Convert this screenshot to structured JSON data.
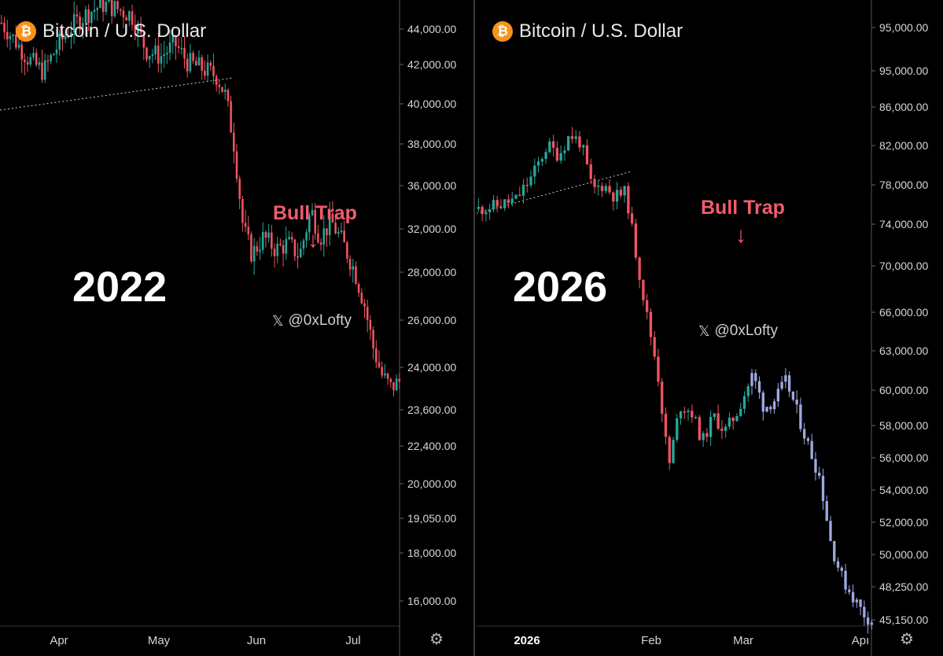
{
  "panels": [
    {
      "id": "left",
      "title": "Bitcoin / U.S. Dollar",
      "coin_symbol": "₿",
      "year_label": "2022",
      "annotation": "Bull Trap",
      "arrow": "↓",
      "watermark": "@0xLofty",
      "x_logo": "𝕏",
      "settings_icon": "⚙"
    },
    {
      "id": "right",
      "title": "Bitcoin / U.S. Dollar",
      "coin_symbol": "₿",
      "year_label": "2026",
      "annotation": "Bull Trap",
      "arrow": "↓",
      "watermark": "@0xLofty",
      "x_logo": "𝕏",
      "settings_icon": "⚙"
    }
  ],
  "colors": {
    "up": "#26a69a",
    "down": "#ef5361",
    "ghost": "#9fa8e0",
    "annotation": "#f25c6b"
  },
  "chart_data": [
    {
      "type": "candlestick",
      "title": "Bitcoin / U.S. Dollar",
      "period_label": "2022",
      "x_tick_labels": [
        "Apr",
        "May",
        "Jun",
        "Jul"
      ],
      "y_tick_labels": [
        "44,000.00",
        "42,000.00",
        "40,000.00",
        "38,000.00",
        "36,000.00",
        "32,000.00",
        "28,000.00",
        "26,000.00",
        "24,000.00",
        "23,600.00",
        "22,400.00",
        "20,000.00",
        "19,050.00",
        "18,000.00",
        "16,000.00"
      ],
      "annotation": "Bull Trap",
      "close_path": [
        {
          "x": "Mar 28",
          "y": 41.6
        },
        {
          "x": "Apr 2",
          "y": 40.5
        },
        {
          "x": "Apr 7",
          "y": 39.2
        },
        {
          "x": "Apr 12",
          "y": 38.4
        },
        {
          "x": "Apr 17",
          "y": 40.1
        },
        {
          "x": "Apr 22",
          "y": 41.4
        },
        {
          "x": "Apr 27",
          "y": 42.2
        },
        {
          "x": "May 2",
          "y": 42.8
        },
        {
          "x": "May 7",
          "y": 42.5
        },
        {
          "x": "May 12",
          "y": 42.1
        },
        {
          "x": "May 17",
          "y": 39.8
        },
        {
          "x": "May 22",
          "y": 39.4
        },
        {
          "x": "May 27",
          "y": 40.2
        },
        {
          "x": "Jun 1",
          "y": 39.0
        },
        {
          "x": "Jun 6",
          "y": 38.6
        },
        {
          "x": "Jun 11",
          "y": 38.1
        },
        {
          "x": "Jun 14",
          "y": 36.8
        },
        {
          "x": "Jun 17",
          "y": 33.5
        },
        {
          "x": "Jun 20",
          "y": 28.2
        },
        {
          "x": "Jun 23",
          "y": 26.5
        },
        {
          "x": "Jun 27",
          "y": 27.6
        },
        {
          "x": "Jul 1",
          "y": 26.8
        },
        {
          "x": "Jul 5",
          "y": 27.2
        },
        {
          "x": "Jul 9",
          "y": 26.4
        },
        {
          "x": "Jul 13",
          "y": 29.4
        },
        {
          "x": "Jul 16",
          "y": 27.6
        },
        {
          "x": "Jul 20",
          "y": 28.6
        },
        {
          "x": "Jul 24",
          "y": 27.2
        },
        {
          "x": "Jul 28",
          "y": 25.4
        },
        {
          "x": "Aug 1",
          "y": 23.2
        },
        {
          "x": "Aug 4",
          "y": 20.4
        },
        {
          "x": "Aug 7",
          "y": 18.6
        },
        {
          "x": "Aug 10",
          "y": 17.8
        },
        {
          "x": "Aug 13",
          "y": 18.2
        }
      ],
      "trendline": {
        "from": {
          "x": "Mar 28",
          "y": 35.9
        },
        "to": {
          "x": "Jun 18",
          "y": 38.0
        }
      }
    },
    {
      "type": "candlestick",
      "title": "Bitcoin / U.S. Dollar",
      "period_label": "2026",
      "x_tick_labels": [
        "2026",
        "Feb",
        "Mar",
        "Apı"
      ],
      "y_tick_labels": [
        "95,000.00",
        "95,000.00",
        "86,000.00",
        "82,000.00",
        "78,000.00",
        "74,000.00",
        "70,000.00",
        "66,000.00",
        "63,000.00",
        "60,000.00",
        "58,000.00",
        "56,000.00",
        "54,000.00",
        "52,000.00",
        "50,000.00",
        "48,250.00",
        "45,150.00"
      ],
      "annotation": "Bull Trap",
      "close_path": [
        {
          "x": "Dec 20",
          "y": 86.0
        },
        {
          "x": "Dec 25",
          "y": 86.3
        },
        {
          "x": "Dec 30",
          "y": 86.9
        },
        {
          "x": "Jan 4",
          "y": 89.2
        },
        {
          "x": "Jan 8",
          "y": 92.2
        },
        {
          "x": "Jan 11",
          "y": 91.2
        },
        {
          "x": "Jan 14",
          "y": 93.2
        },
        {
          "x": "Jan 17",
          "y": 92.4
        },
        {
          "x": "Jan 20",
          "y": 87.8
        },
        {
          "x": "Jan 23",
          "y": 88.4
        },
        {
          "x": "Jan 26",
          "y": 87.2
        },
        {
          "x": "Jan 29",
          "y": 87.6
        },
        {
          "x": "Feb 1",
          "y": 82.2
        },
        {
          "x": "Feb 4",
          "y": 76.0
        },
        {
          "x": "Feb 7",
          "y": 70.4
        },
        {
          "x": "Feb 10",
          "y": 61.0
        },
        {
          "x": "Feb 13",
          "y": 67.0
        },
        {
          "x": "Feb 16",
          "y": 66.5
        },
        {
          "x": "Feb 19",
          "y": 63.5
        },
        {
          "x": "Feb 22",
          "y": 66.0
        },
        {
          "x": "Feb 25",
          "y": 64.5
        },
        {
          "x": "Feb 28",
          "y": 66.2
        },
        {
          "x": "Mar 2",
          "y": 70.0
        },
        {
          "x": "Mar 5",
          "y": 66.8
        },
        {
          "x": "Mar 8",
          "y": 67.6
        },
        {
          "x": "Mar 11",
          "y": 69.4
        },
        {
          "x": "Mar 14",
          "y": 66.2
        },
        {
          "x": "Mar 17",
          "y": 63.0
        },
        {
          "x": "Mar 20",
          "y": 60.0
        },
        {
          "x": "Mar 23",
          "y": 53.5
        },
        {
          "x": "Mar 26",
          "y": 50.2
        },
        {
          "x": "Mar 29",
          "y": 48.4
        },
        {
          "x": "Apr 1",
          "y": 47.0
        },
        {
          "x": "Apr 3",
          "y": 46.2
        }
      ],
      "trendline": {
        "from": {
          "x": "Dec 20",
          "y": 85.6
        },
        "to": {
          "x": "Jan 31",
          "y": 89.6
        }
      }
    }
  ]
}
